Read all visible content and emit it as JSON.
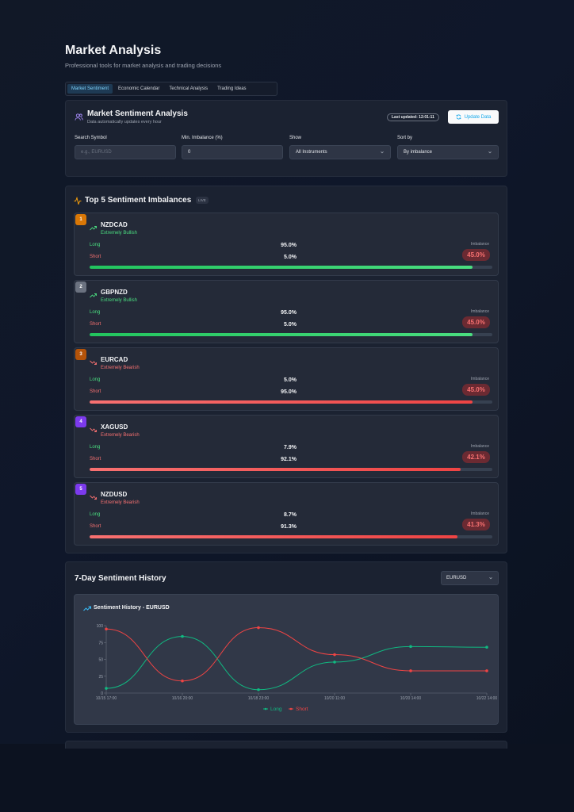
{
  "header": {
    "title": "Market Analysis",
    "subtitle": "Professional tools for market analysis and trading decisions"
  },
  "tabs": [
    {
      "label": "Market Sentiment",
      "active": true
    },
    {
      "label": "Economic Calendar",
      "active": false
    },
    {
      "label": "Technical Analysis",
      "active": false
    },
    {
      "label": "Trading Ideas",
      "active": false
    }
  ],
  "sentiment_panel": {
    "title": "Market Sentiment Analysis",
    "subtitle": "Data automatically updates every hour",
    "last_updated": "Last updated: 12:01:11",
    "update_button": "Update Data",
    "filters": {
      "search_label": "Search Symbol",
      "search_placeholder": "e.g., EURUSD",
      "imbalance_label": "Min. Imbalance (%)",
      "imbalance_value": "0",
      "show_label": "Show",
      "show_value": "All Instruments",
      "sort_label": "Sort by",
      "sort_value": "By imbalance"
    }
  },
  "top5": {
    "title": "Top 5 Sentiment Imbalances",
    "live_badge": "LIVE",
    "long_label": "Long",
    "short_label": "Short",
    "imbalance_label": "Imbalance",
    "items": [
      {
        "rank": "1",
        "rank_color": "#d97706",
        "symbol": "NZDCAD",
        "sentiment": "Extremely Bullish",
        "direction": "up",
        "long": "95.0%",
        "short": "5.0%",
        "imbalance": "45.0%",
        "bar_fraction": 0.95
      },
      {
        "rank": "2",
        "rank_color": "#6b7280",
        "symbol": "GBPNZD",
        "sentiment": "Extremely Bullish",
        "direction": "up",
        "long": "95.0%",
        "short": "5.0%",
        "imbalance": "45.0%",
        "bar_fraction": 0.95
      },
      {
        "rank": "3",
        "rank_color": "#b45309",
        "symbol": "EURCAD",
        "sentiment": "Extremely Bearish",
        "direction": "down",
        "long": "5.0%",
        "short": "95.0%",
        "imbalance": "45.0%",
        "bar_fraction": 0.95
      },
      {
        "rank": "4",
        "rank_color": "#7c3aed",
        "symbol": "XAGUSD",
        "sentiment": "Extremely Bearish",
        "direction": "down",
        "long": "7.9%",
        "short": "92.1%",
        "imbalance": "42.1%",
        "bar_fraction": 0.921
      },
      {
        "rank": "5",
        "rank_color": "#7c3aed",
        "symbol": "NZDUSD",
        "sentiment": "Extremely Bearish",
        "direction": "down",
        "long": "8.7%",
        "short": "91.3%",
        "imbalance": "41.3%",
        "bar_fraction": 0.913
      }
    ]
  },
  "history": {
    "title": "7-Day Sentiment History",
    "pair_value": "EURUSD",
    "chart_title": "Sentiment History - EURUSD"
  },
  "colors": {
    "bullish": "#4ade80",
    "bearish": "#f87171",
    "long_line": "#10b981",
    "short_line": "#ef4444",
    "accent": "#0ea5e9"
  },
  "chart_data": {
    "type": "line",
    "x": [
      "10/15 17:00",
      "10/16 20:00",
      "10/18 23:00",
      "10/20 11:00",
      "10/20 14:00",
      "10/22 14:00"
    ],
    "x_ticks": [
      "10/15 17:00",
      "10/16 20:00",
      "10/18 23:00",
      "10/20 11:00",
      "10/20 14:00",
      "10/22 14:00"
    ],
    "y_ticks": [
      "0",
      "25",
      "50",
      "75",
      "100"
    ],
    "ylim": [
      0,
      100
    ],
    "series": [
      {
        "name": "Long",
        "color": "#10b981",
        "values": [
          7,
          84,
          5,
          46,
          69,
          68
        ]
      },
      {
        "name": "Short",
        "color": "#ef4444",
        "values": [
          95,
          18,
          97,
          57,
          33,
          33
        ]
      }
    ],
    "legend_position": "bottom-center",
    "grid": false
  }
}
